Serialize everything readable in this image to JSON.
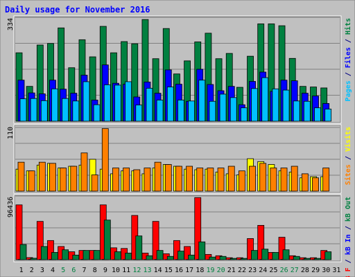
{
  "chart_data": {
    "type": "bar",
    "title": "Daily usage for November 2016",
    "categories": [
      "1",
      "2",
      "3",
      "4",
      "5",
      "6",
      "7",
      "8",
      "9",
      "10",
      "11",
      "12",
      "13",
      "14",
      "15",
      "16",
      "17",
      "18",
      "19",
      "20",
      "21",
      "22",
      "23",
      "24",
      "25",
      "26",
      "27",
      "28",
      "29",
      "30",
      "31"
    ],
    "weekend_days": [
      "5",
      "6",
      "12",
      "13",
      "19",
      "20",
      "26",
      "27"
    ],
    "panels": [
      {
        "name": "requests",
        "y_max_label": "334",
        "ylim": [
          0,
          334
        ],
        "right_label": [
          {
            "text": "Pages",
            "color": "#00c0ff"
          },
          {
            "text": " / ",
            "color": "#000080"
          },
          {
            "text": "Files",
            "color": "#0000ff"
          },
          {
            "text": " / ",
            "color": "#000080"
          },
          {
            "text": "Hits",
            "color": "#008040"
          }
        ],
        "series": [
          {
            "name": "Hits",
            "color": "#008040",
            "values": [
              220,
              112,
              245,
              250,
              300,
              172,
              262,
              207,
              305,
              220,
              256,
              249,
              327,
              201,
              298,
              152,
              194,
              255,
              283,
              201,
              218,
              109,
              209,
              313,
              313,
              307,
              202,
              112,
              110,
              107,
              0
            ]
          },
          {
            "name": "Files",
            "color": "#0000ff",
            "values": [
              132,
              91,
              88,
              132,
              103,
              90,
              148,
              68,
              181,
              122,
              119,
              78,
              126,
              90,
              165,
              119,
              64,
              167,
              118,
              98,
              112,
              53,
              128,
              158,
              96,
              132,
              130,
              90,
              81,
              57,
              0
            ]
          },
          {
            "name": "Pages",
            "color": "#00c0ff",
            "values": [
              72,
              73,
              66,
              104,
              73,
              65,
              127,
              53,
              117,
              116,
              127,
              52,
              106,
              68,
              110,
              68,
              65,
              132,
              64,
              87,
              76,
              43,
              105,
              140,
              104,
              100,
              65,
              64,
              43,
              39,
              0
            ]
          }
        ]
      },
      {
        "name": "visits",
        "y_max_label": "110",
        "ylim": [
          0,
          110
        ],
        "right_label": [
          {
            "text": "Sites",
            "color": "#ff8000"
          },
          {
            "text": " / ",
            "color": "#000080"
          },
          {
            "text": "Visits",
            "color": "#ffff00"
          }
        ],
        "series": [
          {
            "name": "Visits",
            "color": "#ffff00",
            "values": [
              38,
              35,
              45,
              48,
              40,
              43,
              45,
              55,
              38,
              30,
              35,
              35,
              30,
              40,
              46,
              43,
              38,
              37,
              38,
              33,
              30,
              28,
              56,
              51,
              46,
              35,
              33,
              23,
              25,
              25,
              0
            ]
          },
          {
            "name": "Sites",
            "color": "#ff8000",
            "values": [
              50,
              35,
              50,
              48,
              40,
              43,
              66,
              28,
              108,
              40,
              40,
              37,
              40,
              50,
              46,
              43,
              43,
              40,
              40,
              40,
              43,
              35,
              43,
              48,
              40,
              40,
              43,
              30,
              23,
              40,
              0
            ]
          }
        ]
      },
      {
        "name": "kbytes",
        "y_max_label": "96436",
        "ylim": [
          0,
          96436
        ],
        "right_label": [
          {
            "text": "kB F",
            "color": "#ff0000"
          },
          {
            "text": " / ",
            "color": "#000080"
          },
          {
            "text": "kB In",
            "color": "#0000ff"
          },
          {
            "text": " / ",
            "color": "#000080"
          },
          {
            "text": "kB Out",
            "color": "#008040"
          }
        ],
        "series": [
          {
            "name": "kB F",
            "color": "#ff0000",
            "values": [
              83000,
              3200,
              58000,
              29000,
              20000,
              12000,
              14000,
              14000,
              83000,
              18000,
              17000,
              67000,
              10000,
              58000,
              9000,
              29000,
              20000,
              94000,
              8000,
              6000,
              3000,
              3000,
              32000,
              52000,
              11000,
              34000,
              6000,
              3000,
              3000,
              14000,
              0
            ]
          },
          {
            "name": "kB In",
            "color": "#0000ff",
            "values": [
              500,
              500,
              400,
              500,
              300,
              300,
              500,
              400,
              500,
              300,
              400,
              300,
              400,
              500,
              300,
              400,
              300,
              600,
              300,
              300,
              300,
              300,
              300,
              500,
              500,
              500,
              300,
              300,
              300,
              300,
              0
            ]
          },
          {
            "name": "kB Out",
            "color": "#008040",
            "values": [
              23000,
              2200,
              20000,
              11000,
              15000,
              7000,
              14000,
              14000,
              60000,
              12000,
              10000,
              36000,
              6000,
              14000,
              5000,
              13000,
              7000,
              27000,
              4000,
              5000,
              2000,
              2000,
              14000,
              16000,
              11000,
              15000,
              5000,
              2000,
              2000,
              12000,
              0
            ]
          }
        ]
      }
    ]
  }
}
